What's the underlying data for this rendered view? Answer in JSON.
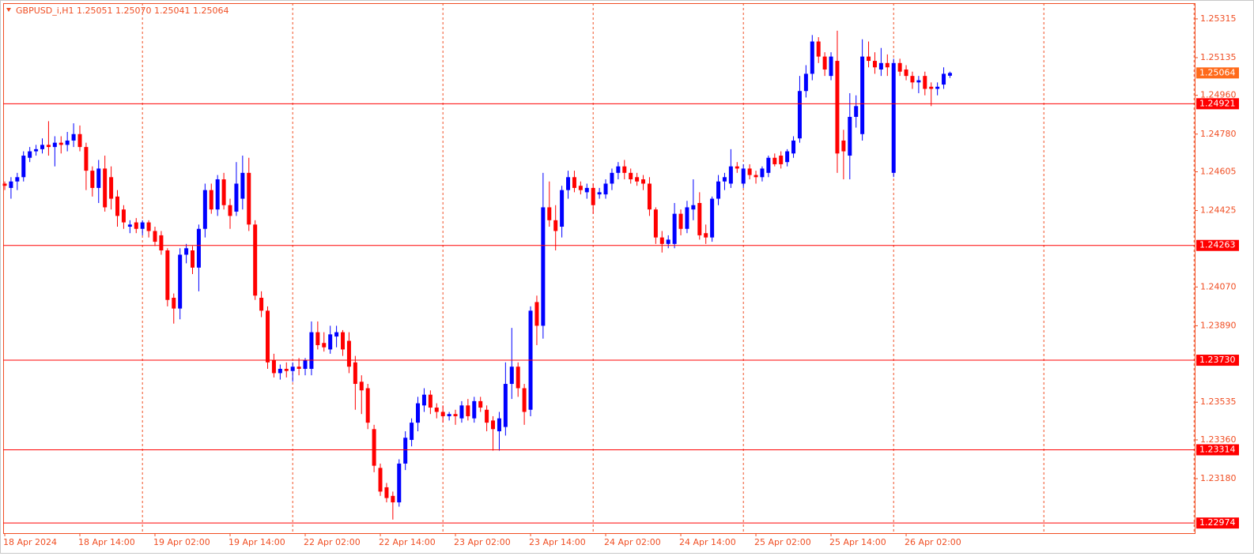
{
  "chart_data": {
    "type": "candlestick",
    "title": "GBPUSD_i,H1  1.25051 1.25070 1.25041 1.25064",
    "categories": [
      "18 Apr 2024",
      null,
      null,
      null,
      null,
      null,
      null,
      null,
      null,
      null,
      null,
      null,
      "18 Apr 14:00",
      null,
      null,
      null,
      null,
      null,
      null,
      null,
      null,
      null,
      null,
      null,
      "19 Apr 02:00",
      null,
      null,
      null,
      null,
      null,
      null,
      null,
      null,
      null,
      null,
      null,
      "19 Apr 14:00",
      null,
      null,
      null,
      null,
      null,
      null,
      null,
      null,
      null,
      null,
      null,
      "22 Apr 02:00",
      null,
      null,
      null,
      null,
      null,
      null,
      null,
      null,
      null,
      null,
      null,
      "22 Apr 14:00",
      null,
      null,
      null,
      null,
      null,
      null,
      null,
      null,
      null,
      null,
      null,
      "23 Apr 02:00",
      null,
      null,
      null,
      null,
      null,
      null,
      null,
      null,
      null,
      null,
      null,
      "23 Apr 14:00",
      null,
      null,
      null,
      null,
      null,
      null,
      null,
      null,
      null,
      null,
      null,
      "24 Apr 02:00",
      null,
      null,
      null,
      null,
      null,
      null,
      null,
      null,
      null,
      null,
      null,
      "24 Apr 14:00",
      null,
      null,
      null,
      null,
      null,
      null,
      null,
      null,
      null,
      null,
      null,
      "25 Apr 02:00",
      null,
      null,
      null,
      null,
      null,
      null,
      null,
      null,
      null,
      null,
      null,
      "25 Apr 14:00",
      null,
      null,
      null,
      null,
      null,
      null,
      null,
      null,
      null,
      null,
      null,
      "26 Apr 02:00",
      null,
      null,
      null,
      null,
      null,
      null,
      null
    ],
    "open": [
      1.2455,
      1.2453,
      1.2456,
      1.2458,
      1.2467,
      1.247,
      1.2471,
      1.2473,
      1.2472,
      1.2474,
      1.2473,
      1.2475,
      1.2478,
      1.2472,
      1.2461,
      1.2453,
      1.2462,
      1.2458,
      1.2449,
      1.2443,
      1.2435,
      1.2437,
      1.2434,
      1.2437,
      1.2433,
      1.2431,
      1.2424,
      1.2402,
      1.2397,
      1.2422,
      1.2424,
      1.2416,
      1.2434,
      1.2452,
      1.2443,
      1.2457,
      1.2445,
      1.2442,
      1.2448,
      1.246,
      1.2436,
      1.2402,
      1.2396,
      1.2373,
      1.2367,
      1.2369,
      1.2368,
      1.237,
      1.2369,
      1.2369,
      1.2386,
      1.2381,
      1.2378,
      1.2384,
      1.2386,
      1.2382,
      1.2372,
      1.2363,
      1.236,
      1.2341,
      1.2323,
      1.2314,
      1.231,
      1.2307,
      1.2325,
      1.2336,
      1.2344,
      1.2352,
      1.2357,
      1.2351,
      1.2349,
      1.2347,
      1.2348,
      1.2346,
      1.2352,
      1.2346,
      1.2354,
      1.235,
      1.2345,
      1.234,
      1.2342,
      1.2362,
      1.237,
      1.236,
      1.235,
      1.24,
      1.2389,
      1.2444,
      1.2438,
      1.2435,
      1.2452,
      1.2458,
      1.2454,
      1.2451,
      1.2453,
      1.245,
      1.245,
      1.2455,
      1.246,
      1.2463,
      1.246,
      1.2458,
      1.2457,
      1.2455,
      1.2443,
      1.243,
      1.2427,
      1.2427,
      1.2441,
      1.2434,
      1.2443,
      1.2446,
      1.2432,
      1.243,
      1.2448,
      1.2456,
      1.2455,
      1.2463,
      1.2455,
      1.2462,
      1.2459,
      1.2458,
      1.246,
      1.2467,
      1.2468,
      1.2465,
      1.2469,
      1.2476,
      1.2498,
      1.2506,
      1.2521,
      1.2514,
      1.2505,
      1.2512,
      1.2475,
      1.2468,
      1.2486,
      1.2478,
      1.2514,
      1.2512,
      1.2508,
      1.2511,
      1.246,
      1.2511,
      1.2508,
      1.2505,
      1.2502,
      1.2505,
      1.25,
      1.2499,
      1.2501,
      1.25051
    ],
    "high": [
      1.2456,
      1.2458,
      1.246,
      1.247,
      1.2472,
      1.2473,
      1.2476,
      1.2484,
      1.2477,
      1.2477,
      1.2479,
      1.2483,
      1.2482,
      1.2474,
      1.2463,
      1.2466,
      1.2468,
      1.2463,
      1.2452,
      1.2445,
      1.2438,
      1.2439,
      1.2438,
      1.2438,
      1.2435,
      1.2433,
      1.2425,
      1.2404,
      1.2425,
      1.2427,
      1.2426,
      1.2436,
      1.2455,
      1.2455,
      1.2459,
      1.246,
      1.2448,
      1.2465,
      1.2468,
      1.2467,
      1.2438,
      1.2405,
      1.2398,
      1.2376,
      1.2371,
      1.2372,
      1.2372,
      1.2374,
      1.2374,
      1.2391,
      1.2391,
      1.2386,
      1.2389,
      1.2389,
      1.2387,
      1.2386,
      1.2375,
      1.2366,
      1.2362,
      1.2343,
      1.2325,
      1.2316,
      1.2312,
      1.2327,
      1.234,
      1.2346,
      1.2356,
      1.236,
      1.2359,
      1.2353,
      1.2352,
      1.2349,
      1.235,
      1.2354,
      1.2355,
      1.2356,
      1.2356,
      1.2352,
      1.2347,
      1.2349,
      1.2372,
      1.2388,
      1.2372,
      1.2362,
      1.2398,
      1.2403,
      1.246,
      1.2456,
      1.2445,
      1.2454,
      1.2461,
      1.2461,
      1.2456,
      1.2455,
      1.2455,
      1.2453,
      1.2457,
      1.2462,
      1.2465,
      1.2466,
      1.2462,
      1.246,
      1.2459,
      1.2458,
      1.2444,
      1.2433,
      1.2431,
      1.2446,
      1.2443,
      1.2447,
      1.2457,
      1.2451,
      1.2436,
      1.2449,
      1.2459,
      1.246,
      1.2471,
      1.2465,
      1.2464,
      1.2464,
      1.2461,
      1.2463,
      1.2468,
      1.2469,
      1.247,
      1.2471,
      1.2477,
      1.2505,
      1.251,
      1.2524,
      1.2523,
      1.2516,
      1.2516,
      1.2526,
      1.248,
      1.2497,
      1.2496,
      1.2522,
      1.2521,
      1.2516,
      1.2518,
      1.2515,
      1.2513,
      1.2513,
      1.251,
      1.2507,
      1.2505,
      1.2507,
      1.2502,
      1.2502,
      1.2509,
      1.2507
    ],
    "low": [
      1.2452,
      1.2448,
      1.2452,
      1.2456,
      1.2465,
      1.2468,
      1.2469,
      1.2468,
      1.2463,
      1.2469,
      1.247,
      1.2472,
      1.247,
      1.2452,
      1.2449,
      1.2446,
      1.2442,
      1.2443,
      1.2435,
      1.2434,
      1.2432,
      1.2432,
      1.2431,
      1.243,
      1.2426,
      1.2422,
      1.2398,
      1.239,
      1.2392,
      1.2418,
      1.2413,
      1.2405,
      1.243,
      1.2441,
      1.244,
      1.2443,
      1.2434,
      1.244,
      1.2443,
      1.2433,
      1.2401,
      1.2393,
      1.2369,
      1.2365,
      1.2364,
      1.2365,
      1.2363,
      1.2366,
      1.2366,
      1.2366,
      1.2378,
      1.2377,
      1.2376,
      1.2379,
      1.2375,
      1.2367,
      1.235,
      1.2348,
      1.2341,
      1.2321,
      1.231,
      1.2307,
      1.2299,
      1.2305,
      1.2322,
      1.2333,
      1.234,
      1.2349,
      1.2348,
      1.2346,
      1.2344,
      1.2345,
      1.2343,
      1.2344,
      1.2345,
      1.2344,
      1.2349,
      1.234,
      1.2331,
      1.2331,
      1.2338,
      1.2355,
      1.2356,
      1.2343,
      1.2347,
      1.238,
      1.2383,
      1.2435,
      1.2424,
      1.243,
      1.2448,
      1.2451,
      1.245,
      1.2448,
      1.2441,
      1.2448,
      1.2448,
      1.2452,
      1.2457,
      1.2457,
      1.2455,
      1.2454,
      1.2452,
      1.244,
      1.2427,
      1.2423,
      1.2425,
      1.2425,
      1.2431,
      1.2432,
      1.2438,
      1.2429,
      1.2427,
      1.2428,
      1.2445,
      1.2452,
      1.2453,
      1.246,
      1.2453,
      1.2457,
      1.2455,
      1.2456,
      1.2458,
      1.2463,
      1.2462,
      1.2463,
      1.2467,
      1.2474,
      1.2495,
      1.2503,
      1.2511,
      1.2505,
      1.2503,
      1.246,
      1.2457,
      1.2457,
      1.2481,
      1.2475,
      1.2509,
      1.2506,
      1.2505,
      1.2505,
      1.2458,
      1.2505,
      1.2503,
      1.2499,
      1.2497,
      1.2496,
      1.2491,
      1.2496,
      1.2499,
      1.25041
    ],
    "close": [
      1.2454,
      1.2456,
      1.2458,
      1.2468,
      1.247,
      1.2471,
      1.2473,
      1.2472,
      1.2474,
      1.2473,
      1.2475,
      1.2478,
      1.2472,
      1.2461,
      1.2453,
      1.2462,
      1.2444,
      1.2448,
      1.244,
      1.2437,
      1.2436,
      1.2434,
      1.2437,
      1.2433,
      1.2428,
      1.2424,
      1.2401,
      1.2397,
      1.2422,
      1.2425,
      1.2416,
      1.2434,
      1.2452,
      1.2443,
      1.2457,
      1.2445,
      1.244,
      1.2455,
      1.246,
      1.2436,
      1.2403,
      1.2396,
      1.2372,
      1.2367,
      1.2369,
      1.2368,
      1.237,
      1.2369,
      1.2373,
      1.2386,
      1.238,
      1.2379,
      1.2385,
      1.2386,
      1.2378,
      1.237,
      1.2362,
      1.2359,
      1.2344,
      1.2324,
      1.2312,
      1.2309,
      1.2307,
      1.2325,
      1.2337,
      1.2344,
      1.2353,
      1.2357,
      1.2351,
      1.2349,
      1.2347,
      1.2348,
      1.2347,
      1.2352,
      1.2347,
      1.2354,
      1.2351,
      1.2344,
      1.2341,
      1.2346,
      1.2362,
      1.237,
      1.236,
      1.2349,
      1.2396,
      1.2389,
      1.2444,
      1.2438,
      1.2433,
      1.2452,
      1.2458,
      1.2453,
      1.2452,
      1.2453,
      1.2445,
      1.2451,
      1.2455,
      1.246,
      1.2463,
      1.246,
      1.2457,
      1.2456,
      1.2455,
      1.2443,
      1.243,
      1.2427,
      1.2429,
      1.2441,
      1.2434,
      1.2444,
      1.2445,
      1.2431,
      1.243,
      1.2448,
      1.2456,
      1.2458,
      1.2463,
      1.2462,
      1.2462,
      1.2459,
      1.2458,
      1.2462,
      1.2467,
      1.2464,
      1.2464,
      1.247,
      1.2475,
      1.2498,
      1.2506,
      1.2521,
      1.2514,
      1.2508,
      1.2514,
      1.2469,
      1.247,
      1.2486,
      1.2491,
      1.2514,
      1.2512,
      1.2509,
      1.2511,
      1.2509,
      1.2511,
      1.2507,
      1.2505,
      1.2502,
      1.2503,
      1.2499,
      1.2499,
      1.25,
      1.2506,
      1.25064
    ],
    "up_color": "#0000ff",
    "down_color": "#ff0000",
    "ylim": [
      1.22927,
      1.25388
    ],
    "yticks": [
      1.25315,
      1.25135,
      {
        "value": 1.2496,
        "label": "1.24960"
      },
      {
        "value": 1.2478,
        "label": "1.24780"
      },
      1.24605,
      1.24425,
      {
        "value": 1.2407,
        "label": "1.24070"
      },
      {
        "value": 1.2389,
        "label": "1.23890"
      },
      1.23535,
      {
        "value": 1.2336,
        "label": "1.23360"
      },
      {
        "value": 1.2318,
        "label": "1.23180"
      }
    ],
    "hlines": [
      1.24921,
      1.24263,
      {
        "value": 1.2373,
        "label": "1.23730"
      },
      1.23314,
      1.22974
    ],
    "hline_color": "#ff0000",
    "last_price_color": "#ff6a1a"
  }
}
